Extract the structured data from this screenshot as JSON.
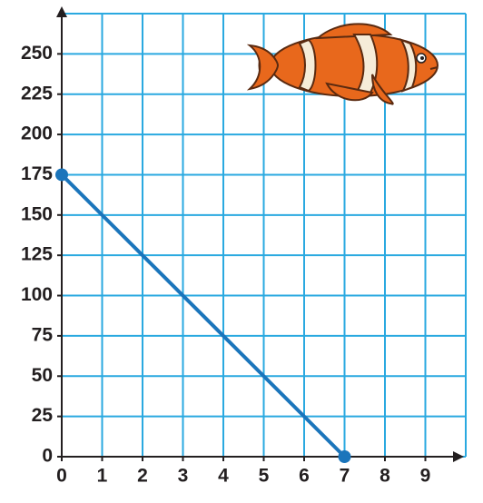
{
  "chart_data": {
    "type": "line",
    "x": [
      0,
      7
    ],
    "values": [
      175,
      0
    ],
    "color": "#1b75bb",
    "grid_color": "#2aa9e0",
    "xlim": [
      0,
      10
    ],
    "ylim": [
      0,
      275
    ],
    "xticks": [
      0,
      1,
      2,
      3,
      4,
      5,
      6,
      7,
      8,
      9
    ],
    "yticks": [
      0,
      25,
      50,
      75,
      100,
      125,
      150,
      175,
      200,
      225,
      250
    ],
    "grid": true,
    "markers": true
  }
}
